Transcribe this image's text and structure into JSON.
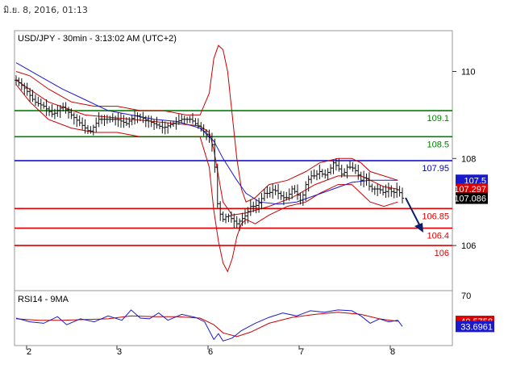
{
  "header": {
    "timestamp": "มิ.ย. 8, 2016, 01:13"
  },
  "chart_data": {
    "type": "candlestick",
    "title": "USD/JPY - 30min - 3:13:02 AM (UTC+2)",
    "x_ticks": [
      "2",
      "3",
      "6",
      "7",
      "8"
    ],
    "price_axis": {
      "ticks": [
        "110",
        "108",
        "106"
      ],
      "ylim": [
        105.0,
        110.9
      ]
    },
    "levels": [
      {
        "value": 109.1,
        "label": "109.1",
        "color": "#008000"
      },
      {
        "value": 108.5,
        "label": "108.5",
        "color": "#008000"
      },
      {
        "value": 107.95,
        "label": "107.95",
        "color": "#0000cc"
      },
      {
        "value": 106.85,
        "label": "106.85",
        "color": "#dd0000"
      },
      {
        "value": 106.4,
        "label": "106.4",
        "color": "#dd0000"
      },
      {
        "value": 106.0,
        "label": "106",
        "color": "#dd0000"
      }
    ],
    "price_tags": [
      {
        "value": 107.5,
        "label": "107.5",
        "bg": "#1a1acc"
      },
      {
        "value": 107.297,
        "label": "107.297",
        "bg": "#dd0000"
      },
      {
        "value": 107.086,
        "label": "107.086",
        "bg": "#000000"
      }
    ],
    "price_path": [
      [
        0,
        109.8
      ],
      [
        4,
        109.6
      ],
      [
        8,
        109.3
      ],
      [
        12,
        109.2
      ],
      [
        16,
        109.0
      ],
      [
        20,
        109.2
      ],
      [
        24,
        109.0
      ],
      [
        28,
        108.8
      ],
      [
        32,
        108.6
      ],
      [
        36,
        108.9
      ],
      [
        40,
        108.9
      ],
      [
        44,
        108.9
      ],
      [
        48,
        108.8
      ],
      [
        52,
        109.0
      ],
      [
        56,
        108.9
      ],
      [
        60,
        108.8
      ],
      [
        64,
        108.7
      ],
      [
        68,
        108.8
      ],
      [
        72,
        108.9
      ],
      [
        76,
        108.9
      ],
      [
        80,
        108.7
      ],
      [
        84,
        108.5
      ],
      [
        86,
        108.2
      ],
      [
        87,
        107.2
      ],
      [
        88,
        106.8
      ],
      [
        90,
        106.6
      ],
      [
        92,
        106.7
      ],
      [
        94,
        106.6
      ],
      [
        96,
        106.5
      ],
      [
        98,
        106.6
      ],
      [
        100,
        106.7
      ],
      [
        102,
        106.9
      ],
      [
        104,
        106.9
      ],
      [
        106,
        107.0
      ],
      [
        108,
        107.2
      ],
      [
        110,
        107.2
      ],
      [
        112,
        107.3
      ],
      [
        114,
        107.2
      ],
      [
        116,
        107.1
      ],
      [
        118,
        107.1
      ],
      [
        120,
        107.3
      ],
      [
        122,
        107.2
      ],
      [
        124,
        107.0
      ],
      [
        126,
        107.4
      ],
      [
        128,
        107.6
      ],
      [
        130,
        107.6
      ],
      [
        132,
        107.7
      ],
      [
        134,
        107.6
      ],
      [
        136,
        107.7
      ],
      [
        138,
        107.9
      ],
      [
        140,
        107.8
      ],
      [
        142,
        107.6
      ],
      [
        144,
        107.8
      ],
      [
        146,
        107.8
      ],
      [
        148,
        107.7
      ],
      [
        150,
        107.5
      ],
      [
        152,
        107.6
      ],
      [
        154,
        107.3
      ],
      [
        156,
        107.3
      ],
      [
        158,
        107.3
      ],
      [
        160,
        107.2
      ],
      [
        162,
        107.3
      ],
      [
        164,
        107.2
      ],
      [
        166,
        107.3
      ],
      [
        168,
        107.086
      ]
    ],
    "bollinger": {
      "upper": [
        [
          0,
          110.0
        ],
        [
          6,
          109.9
        ],
        [
          14,
          109.6
        ],
        [
          24,
          109.3
        ],
        [
          34,
          109.2
        ],
        [
          44,
          109.2
        ],
        [
          54,
          109.1
        ],
        [
          64,
          109.1
        ],
        [
          74,
          109.0
        ],
        [
          80,
          109.0
        ],
        [
          84,
          109.5
        ],
        [
          86,
          110.3
        ],
        [
          88,
          110.6
        ],
        [
          90,
          110.5
        ],
        [
          92,
          110.0
        ],
        [
          94,
          109.0
        ],
        [
          96,
          108.0
        ],
        [
          98,
          107.3
        ],
        [
          100,
          107.0
        ],
        [
          104,
          107.1
        ],
        [
          110,
          107.4
        ],
        [
          118,
          107.5
        ],
        [
          126,
          107.7
        ],
        [
          132,
          107.9
        ],
        [
          140,
          108.0
        ],
        [
          146,
          108.0
        ],
        [
          150,
          107.9
        ],
        [
          154,
          107.7
        ],
        [
          160,
          107.6
        ],
        [
          166,
          107.5
        ]
      ],
      "lower": [
        [
          0,
          109.7
        ],
        [
          6,
          109.3
        ],
        [
          14,
          108.9
        ],
        [
          24,
          108.7
        ],
        [
          34,
          108.6
        ],
        [
          44,
          108.6
        ],
        [
          54,
          108.5
        ],
        [
          64,
          108.5
        ],
        [
          74,
          108.5
        ],
        [
          80,
          108.5
        ],
        [
          84,
          107.8
        ],
        [
          86,
          106.8
        ],
        [
          88,
          106.1
        ],
        [
          90,
          105.6
        ],
        [
          92,
          105.4
        ],
        [
          94,
          105.7
        ],
        [
          96,
          106.2
        ],
        [
          98,
          106.5
        ],
        [
          100,
          106.6
        ],
        [
          104,
          106.5
        ],
        [
          110,
          106.7
        ],
        [
          118,
          106.9
        ],
        [
          126,
          107.0
        ],
        [
          132,
          107.2
        ],
        [
          140,
          107.4
        ],
        [
          146,
          107.4
        ],
        [
          150,
          107.2
        ],
        [
          154,
          107.0
        ],
        [
          160,
          106.9
        ],
        [
          166,
          107.0
        ]
      ],
      "mid_red": [
        [
          0,
          109.8
        ],
        [
          14,
          109.3
        ],
        [
          30,
          109.0
        ],
        [
          50,
          108.9
        ],
        [
          70,
          108.8
        ],
        [
          80,
          108.75
        ],
        [
          84,
          108.6
        ],
        [
          86,
          108.2
        ],
        [
          88,
          107.6
        ],
        [
          90,
          107.0
        ],
        [
          94,
          106.7
        ],
        [
          100,
          106.75
        ],
        [
          110,
          106.9
        ],
        [
          120,
          107.1
        ],
        [
          130,
          107.4
        ],
        [
          140,
          107.6
        ],
        [
          150,
          107.6
        ],
        [
          160,
          107.35
        ],
        [
          166,
          107.297
        ]
      ],
      "ma_blue": [
        [
          0,
          110.2
        ],
        [
          10,
          109.9
        ],
        [
          20,
          109.6
        ],
        [
          30,
          109.35
        ],
        [
          40,
          109.1
        ],
        [
          50,
          109.0
        ],
        [
          60,
          108.9
        ],
        [
          70,
          108.85
        ],
        [
          80,
          108.7
        ],
        [
          86,
          108.4
        ],
        [
          90,
          108.0
        ],
        [
          96,
          107.5
        ],
        [
          100,
          107.2
        ],
        [
          106,
          107.0
        ],
        [
          114,
          106.95
        ],
        [
          122,
          107.0
        ],
        [
          130,
          107.15
        ],
        [
          138,
          107.3
        ],
        [
          146,
          107.45
        ],
        [
          154,
          107.5
        ],
        [
          160,
          107.5
        ],
        [
          166,
          107.5
        ]
      ]
    },
    "rsi_panel": {
      "label": "RSI14 - 9MA",
      "level_tick": "70",
      "ylim": [
        10,
        80
      ],
      "tags": [
        {
          "value": 40.5758,
          "label": "40.5758",
          "bg": "#dd0000"
        },
        {
          "value": 33.6961,
          "label": "33.6961",
          "bg": "#1a1acc"
        }
      ],
      "rsi": [
        [
          0,
          45
        ],
        [
          6,
          40
        ],
        [
          12,
          38
        ],
        [
          18,
          47
        ],
        [
          22,
          36
        ],
        [
          28,
          44
        ],
        [
          34,
          40
        ],
        [
          40,
          48
        ],
        [
          46,
          42
        ],
        [
          50,
          56
        ],
        [
          54,
          45
        ],
        [
          58,
          44
        ],
        [
          62,
          52
        ],
        [
          66,
          42
        ],
        [
          72,
          50
        ],
        [
          78,
          46
        ],
        [
          82,
          40
        ],
        [
          86,
          16
        ],
        [
          88,
          24
        ],
        [
          90,
          14
        ],
        [
          94,
          18
        ],
        [
          98,
          28
        ],
        [
          104,
          38
        ],
        [
          110,
          46
        ],
        [
          116,
          52
        ],
        [
          122,
          48
        ],
        [
          128,
          55
        ],
        [
          134,
          53
        ],
        [
          140,
          56
        ],
        [
          146,
          55
        ],
        [
          150,
          48
        ],
        [
          154,
          38
        ],
        [
          158,
          44
        ],
        [
          162,
          40
        ],
        [
          166,
          42
        ],
        [
          168,
          33.6961
        ]
      ],
      "ma": [
        [
          0,
          44
        ],
        [
          10,
          42
        ],
        [
          20,
          42
        ],
        [
          30,
          43
        ],
        [
          40,
          44
        ],
        [
          50,
          48
        ],
        [
          60,
          47
        ],
        [
          70,
          47
        ],
        [
          80,
          45
        ],
        [
          86,
          36
        ],
        [
          90,
          25
        ],
        [
          96,
          20
        ],
        [
          102,
          26
        ],
        [
          110,
          38
        ],
        [
          120,
          46
        ],
        [
          130,
          50
        ],
        [
          140,
          53
        ],
        [
          150,
          50
        ],
        [
          158,
          44
        ],
        [
          166,
          40.5758
        ]
      ]
    }
  }
}
